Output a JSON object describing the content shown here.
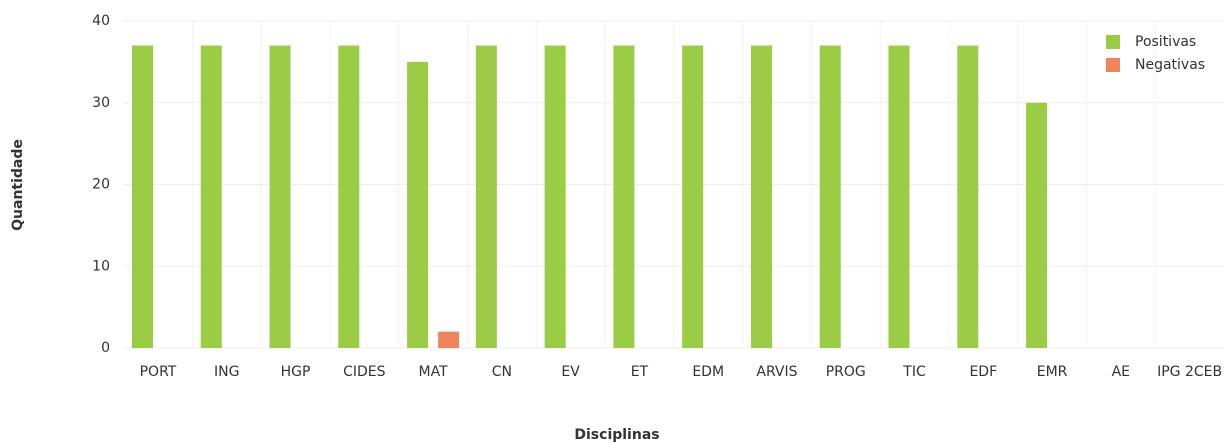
{
  "chart_data": {
    "type": "bar",
    "xlabel": "Disciplinas",
    "ylabel": "Quantidade",
    "categories": [
      "PORT",
      "ING",
      "HGP",
      "CIDES",
      "MAT",
      "CN",
      "EV",
      "ET",
      "EDM",
      "ARVIS",
      "PROG",
      "TIC",
      "EDF",
      "EMR",
      "AE",
      "IPG 2CEB"
    ],
    "series": [
      {
        "name": "Positivas",
        "color": "#9acd45",
        "values": [
          37,
          37,
          37,
          37,
          35,
          37,
          37,
          37,
          37,
          37,
          37,
          37,
          37,
          30,
          0,
          0
        ]
      },
      {
        "name": "Negativas",
        "color": "#f0845c",
        "values": [
          0,
          0,
          0,
          0,
          2,
          0,
          0,
          0,
          0,
          0,
          0,
          0,
          0,
          0,
          0,
          0
        ]
      }
    ],
    "ylim": [
      0,
      40
    ],
    "yticks": [
      0,
      10,
      20,
      30,
      40
    ],
    "grid": true,
    "legend": "top-right"
  }
}
